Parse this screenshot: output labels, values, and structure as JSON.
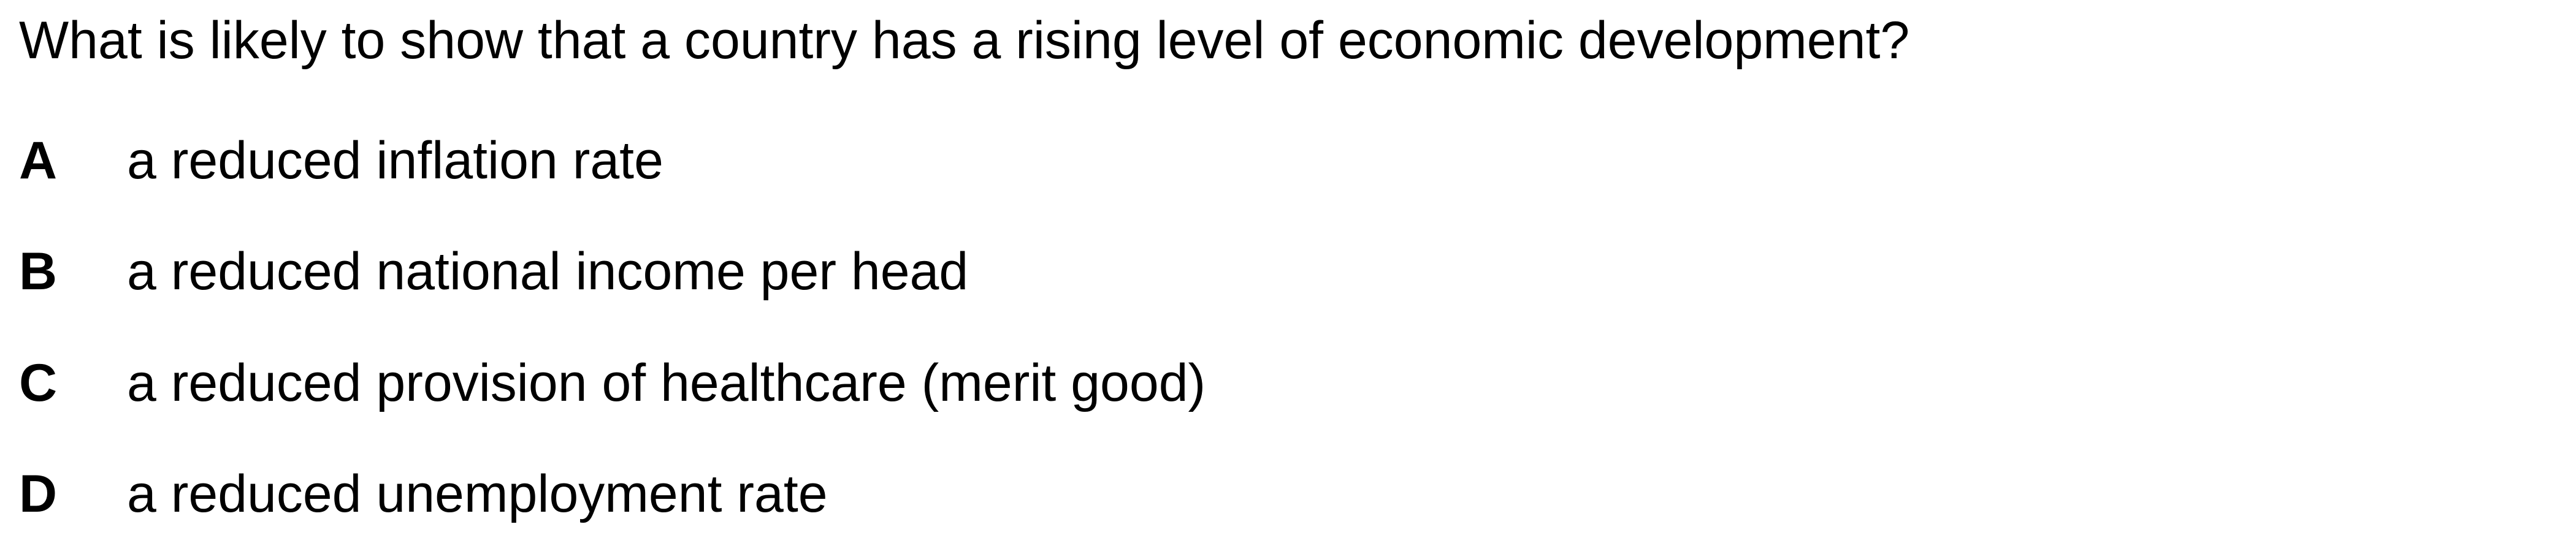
{
  "question": {
    "text": "What is likely to show that a country has a rising level of economic development?"
  },
  "options": [
    {
      "letter": "A",
      "text": "a reduced inflation rate"
    },
    {
      "letter": "B",
      "text": "a reduced national income per head"
    },
    {
      "letter": "C",
      "text": "a reduced provision of healthcare (merit good)"
    },
    {
      "letter": "D",
      "text": "a reduced unemployment rate"
    }
  ]
}
